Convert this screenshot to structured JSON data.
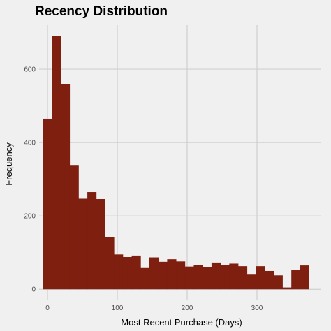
{
  "chart_data": {
    "type": "bar",
    "title": "Recency Distribution",
    "xlabel": "Most Recent Purchase (Days)",
    "ylabel": "Frequency",
    "bin_width": 12.7,
    "bin_start": -6.4,
    "values": [
      465,
      690,
      560,
      337,
      247,
      265,
      246,
      143,
      95,
      88,
      92,
      58,
      87,
      75,
      82,
      76,
      62,
      66,
      60,
      73,
      66,
      70,
      63,
      40,
      63,
      50,
      38,
      5,
      52,
      65
    ],
    "xlim": [
      -12,
      392
    ],
    "ylim": [
      -30,
      720
    ],
    "x_ticks": [
      0,
      100,
      200,
      300
    ],
    "y_ticks": [
      0,
      200,
      400,
      600
    ],
    "grid": true,
    "colors": {
      "bar": "#7f1f10",
      "background": "#f0f0f0",
      "grid": "#cfcfcf"
    }
  }
}
